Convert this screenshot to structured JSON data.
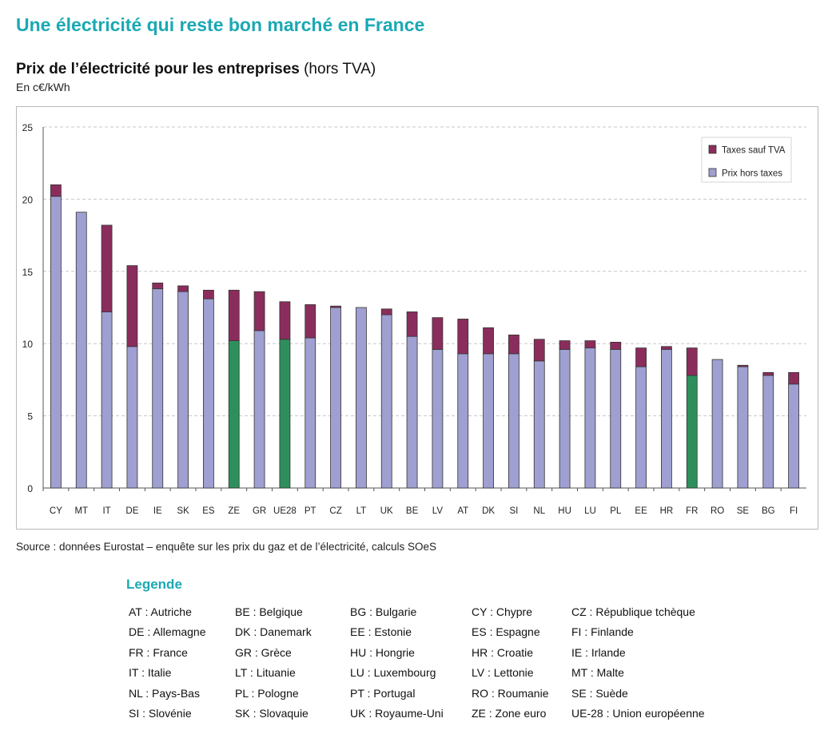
{
  "main_title": "Une électricité qui reste bon marché en France",
  "chart_title_bold": "Prix de l’électricité pour les entreprises",
  "chart_title_normal": "(hors TVA)",
  "unit": "En c€/kWh",
  "source": "Source : données Eurostat – enquête sur les prix du gaz et de l’électricité, calculs SOeS",
  "colors": {
    "taxes": "#8b2d5c",
    "prix": "#9f9fd1",
    "highlight": "#2e8f5c",
    "grid": "#c8c8c8",
    "title": "#1aa9b4"
  },
  "chart_data": {
    "type": "bar",
    "stacked": true,
    "categories": [
      "CY",
      "MT",
      "IT",
      "DE",
      "IE",
      "SK",
      "ES",
      "ZE",
      "GR",
      "UE28",
      "PT",
      "CZ",
      "LT",
      "UK",
      "BE",
      "LV",
      "AT",
      "DK",
      "SI",
      "NL",
      "HU",
      "LU",
      "PL",
      "EE",
      "HR",
      "FR",
      "RO",
      "SE",
      "BG",
      "FI"
    ],
    "highlighted": [
      "ZE",
      "UE28",
      "FR"
    ],
    "series": [
      {
        "name": "Prix hors taxes",
        "color": "#9f9fd1",
        "values": [
          20.2,
          19.1,
          12.2,
          9.8,
          13.8,
          13.6,
          13.1,
          10.2,
          10.9,
          10.3,
          10.4,
          12.5,
          12.5,
          12.0,
          10.5,
          9.6,
          9.3,
          9.3,
          9.3,
          8.8,
          9.6,
          9.7,
          9.6,
          8.4,
          9.6,
          7.8,
          8.9,
          8.4,
          7.8,
          7.2
        ]
      },
      {
        "name": "Taxes sauf TVA",
        "color": "#8b2d5c",
        "values": [
          0.8,
          0.0,
          6.0,
          5.6,
          0.4,
          0.4,
          0.6,
          3.5,
          2.7,
          2.6,
          2.3,
          0.1,
          0.0,
          0.4,
          1.7,
          2.2,
          2.4,
          1.8,
          1.3,
          1.5,
          0.6,
          0.5,
          0.5,
          1.3,
          0.2,
          1.9,
          0.0,
          0.1,
          0.2,
          0.8
        ]
      }
    ],
    "legend_order": [
      "Taxes sauf TVA",
      "Prix hors taxes"
    ],
    "legend_position": "top-right",
    "ylim": [
      0,
      25
    ],
    "yticks": [
      0,
      5,
      10,
      15,
      20,
      25
    ],
    "grid": true,
    "xlabel": "",
    "ylabel": ""
  },
  "legende": {
    "title": "Legende",
    "columns": [
      [
        "AT : Autriche",
        "DE : Allemagne",
        "FR : France",
        "IT : Italie",
        "NL : Pays-Bas",
        "SI : Slovénie"
      ],
      [
        "BE : Belgique",
        "DK : Danemark",
        "GR : Grèce",
        "LT : Lituanie",
        "PL : Pologne",
        "SK : Slovaquie"
      ],
      [
        "BG : Bulgarie",
        "EE : Estonie",
        "HU : Hongrie",
        "LU : Luxembourg",
        "PT : Portugal",
        "UK : Royaume-Uni"
      ],
      [
        "CY : Chypre",
        "ES : Espagne",
        "HR : Croatie",
        "LV : Lettonie",
        "RO : Roumanie",
        "ZE : Zone euro"
      ],
      [
        "CZ : République tchèque",
        "FI : Finlande",
        "IE : Irlande",
        "MT : Malte",
        "SE : Suède",
        "UE-28 : Union européenne"
      ]
    ]
  }
}
